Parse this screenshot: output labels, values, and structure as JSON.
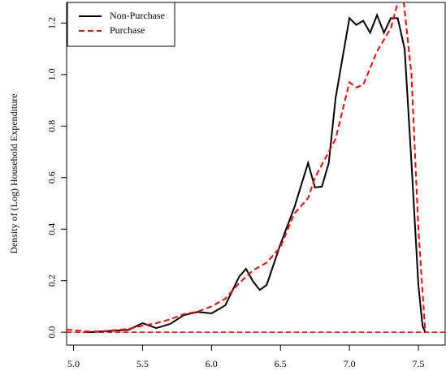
{
  "chart_data": {
    "type": "line",
    "y_label": "Density of (Log) Household Expenditure",
    "xlim": [
      4.95,
      7.7
    ],
    "ylim": [
      -0.05,
      1.28
    ],
    "xticks": [
      {
        "value": 5,
        "label": "5.0"
      },
      5.5,
      {
        "value": 6,
        "label": "6.0"
      },
      6.5,
      {
        "value": 7,
        "label": "7.0"
      },
      7.5
    ],
    "yticks": [
      {
        "value": 0,
        "label": "0.0"
      },
      0.2,
      0.4,
      0.6,
      0.8,
      {
        "value": 1,
        "label": "1.0"
      },
      1.2
    ],
    "legend": "top-left",
    "series": [
      {
        "name": "Non-Purchase",
        "color": "#000000",
        "dash": "solid",
        "x": [
          5.1,
          5.2,
          5.4,
          5.5,
          5.6,
          5.7,
          5.8,
          5.9,
          6.0,
          6.1,
          6.2,
          6.25,
          6.3,
          6.35,
          6.4,
          6.5,
          6.6,
          6.7,
          6.75,
          6.8,
          6.85,
          6.9,
          7.0,
          7.05,
          7.1,
          7.15,
          7.2,
          7.25,
          7.3,
          7.35,
          7.4,
          7.45,
          7.5,
          7.53,
          7.55
        ],
        "values": [
          0,
          0.003,
          0.009,
          0.035,
          0.016,
          0.032,
          0.066,
          0.079,
          0.073,
          0.104,
          0.215,
          0.246,
          0.198,
          0.164,
          0.183,
          0.341,
          0.483,
          0.657,
          0.562,
          0.565,
          0.657,
          0.909,
          1.219,
          1.193,
          1.209,
          1.162,
          1.231,
          1.162,
          1.219,
          1.219,
          1.099,
          0.657,
          0.183,
          0.025,
          0
        ]
      },
      {
        "name": "Purchase",
        "color": "#ff0000",
        "dash": "dashed",
        "x": [
          4.95,
          5.0,
          5.1,
          5.2,
          5.4,
          5.5,
          5.6,
          5.7,
          5.8,
          5.9,
          6.0,
          6.1,
          6.2,
          6.3,
          6.4,
          6.5,
          6.6,
          6.7,
          6.75,
          6.8,
          6.9,
          7.0,
          7.05,
          7.1,
          7.2,
          7.3,
          7.35,
          7.38,
          7.45,
          7.5,
          7.55
        ],
        "values": [
          0.01,
          0.008,
          0.003,
          0.003,
          0.013,
          0.025,
          0.035,
          0.05,
          0.07,
          0.08,
          0.1,
          0.13,
          0.19,
          0.24,
          0.27,
          0.33,
          0.46,
          0.52,
          0.6,
          0.65,
          0.75,
          0.97,
          0.95,
          0.96,
          1.09,
          1.18,
          1.28,
          1.35,
          1.0,
          0.4,
          0
        ]
      }
    ]
  }
}
